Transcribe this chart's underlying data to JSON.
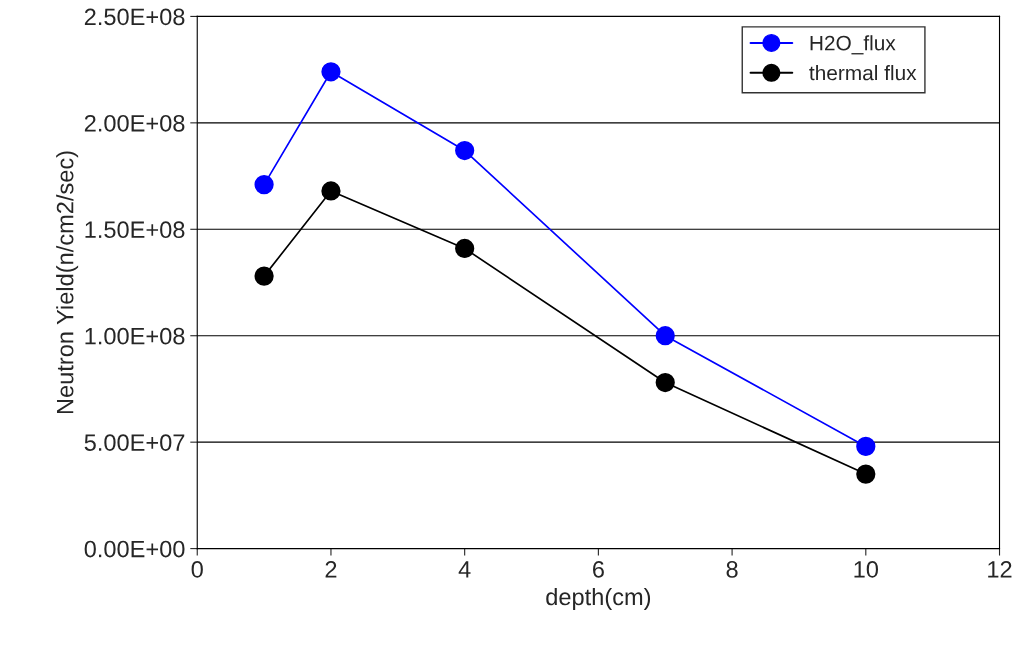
{
  "chart_data": {
    "type": "line",
    "xlabel": "depth(cm)",
    "ylabel": "Neutron Yield(n/cm2/sec)",
    "x": [
      1,
      2,
      4,
      7,
      10
    ],
    "series": [
      {
        "name": "H2O_flux",
        "color": "#0000ff",
        "values": [
          171000000,
          224000000,
          187000000,
          100000000,
          48000000
        ],
        "marker": "circle"
      },
      {
        "name": "thermal flux",
        "color": "#000000",
        "values": [
          128000000,
          168000000,
          141000000,
          78000000,
          35000000
        ],
        "marker": "circle"
      }
    ],
    "xlim": [
      0,
      12
    ],
    "xticks": [
      0,
      2,
      4,
      6,
      8,
      10,
      12
    ],
    "ylim": [
      0,
      250000000
    ],
    "yticks": [
      {
        "value": 0,
        "label": "0.00E+00"
      },
      {
        "value": 50000000,
        "label": "5.00E+07"
      },
      {
        "value": 100000000,
        "label": "1.00E+08"
      },
      {
        "value": 150000000,
        "label": "1.50E+08"
      },
      {
        "value": 200000000,
        "label": "2.00E+08"
      },
      {
        "value": 250000000,
        "label": "2.50E+08"
      }
    ],
    "grid": "y",
    "legend": "top right",
    "line_style": "solid"
  }
}
